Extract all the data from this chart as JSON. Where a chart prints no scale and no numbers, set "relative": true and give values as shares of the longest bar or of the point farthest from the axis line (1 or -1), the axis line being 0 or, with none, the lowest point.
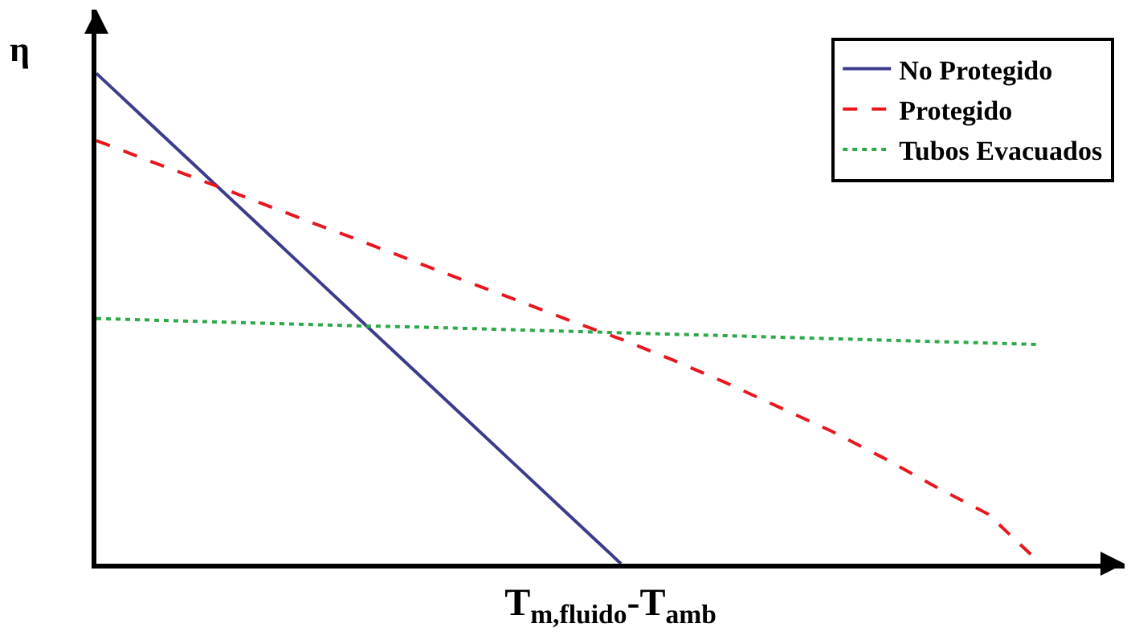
{
  "chart_data": {
    "type": "line",
    "relative": true,
    "xlabel": "T$_{m,fluido}$-T$_{amb}$",
    "ylabel": "η",
    "legend": "top right",
    "marker": "none",
    "categories": [
      null,
      null,
      null,
      null,
      null,
      null,
      null,
      null,
      null,
      null,
      null,
      null,
      null,
      null,
      null,
      null,
      null,
      null,
      null
    ],
    "series": [
      {
        "name": "No Protegido",
        "color": "#3c3c8c",
        "line_style": "solid",
        "values": [
          1,
          0.9,
          0.8,
          0.7,
          0.6,
          0.5,
          0.4,
          0.3,
          0.2,
          0.1,
          0,
          null,
          null,
          null,
          null,
          null,
          null,
          null,
          null
        ]
      },
      {
        "name": "Protegido",
        "color": "#e8161e",
        "line_style": "dashed",
        "values": [
          0.863,
          0.822,
          0.782,
          0.741,
          0.7,
          0.66,
          0.619,
          0.578,
          0.538,
          0.497,
          0.458,
          0.415,
          0.369,
          0.32,
          0.271,
          0.216,
          0.157,
          0.101,
          0
        ]
      },
      {
        "name": "Tubos Evacuados",
        "color": "#2ea84a",
        "line_style": "dotted",
        "values": [
          0.5,
          0.497,
          0.494,
          0.491,
          0.488,
          0.485,
          0.483,
          0.48,
          0.477,
          0.474,
          0.471,
          0.468,
          0.465,
          0.462,
          0.459,
          0.456,
          0.453,
          0.45,
          0.447
        ]
      }
    ]
  }
}
